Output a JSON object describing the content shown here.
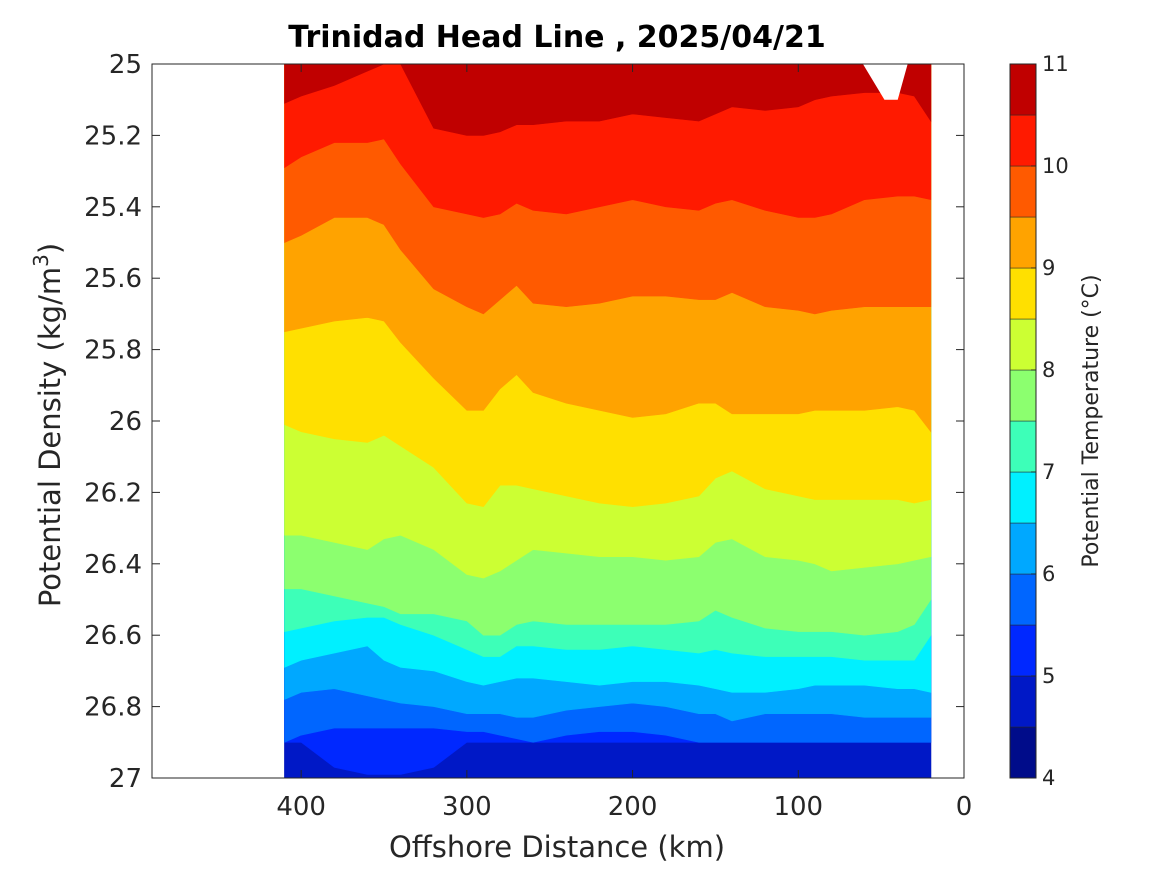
{
  "chart_data": {
    "type": "heatmap",
    "title": "Trinidad Head Line , 2025/04/21",
    "xlabel": "Offshore Distance (km)",
    "ylabel_prefix": "Potential Density (kg/m",
    "ylabel_sup": "3",
    "ylabel_suffix": ")",
    "colorbar_label": "Potential Temperature (°C)",
    "xlim": [
      490,
      0
    ],
    "ylim": [
      27,
      25
    ],
    "x_ticks": [
      "400",
      "300",
      "200",
      "100",
      "0"
    ],
    "x_tick_values": [
      400,
      300,
      200,
      100,
      0
    ],
    "y_ticks": [
      "25",
      "25.2",
      "25.4",
      "25.6",
      "25.8",
      "26",
      "26.2",
      "26.4",
      "26.6",
      "26.8",
      "27"
    ],
    "y_tick_values": [
      25,
      25.2,
      25.4,
      25.6,
      25.8,
      26,
      26.2,
      26.4,
      26.6,
      26.8,
      27
    ],
    "colorbar_ticks": [
      "4",
      "5",
      "6",
      "7",
      "8",
      "9",
      "10",
      "11"
    ],
    "colorbar_tick_values": [
      4,
      5,
      6,
      7,
      8,
      9,
      10,
      11
    ],
    "levels": [
      4,
      4.5,
      5,
      5.5,
      6,
      6.5,
      7,
      7.5,
      8,
      8.5,
      9,
      9.5,
      10,
      10.5,
      11
    ],
    "level_colors": [
      "#000c8a",
      "#0018c6",
      "#0028ff",
      "#0066ff",
      "#00a8ff",
      "#00f0ff",
      "#3dffb8",
      "#8cff6f",
      "#ccff33",
      "#ffe000",
      "#ffa300",
      "#ff5a00",
      "#ff1a00",
      "#c00000"
    ],
    "colormap": "jet",
    "data_extent": {
      "x_min": 20,
      "x_max": 410,
      "sigma_min": 25,
      "sigma_max": 26.9
    },
    "isotherms": {
      "x": [
        410,
        400,
        380,
        360,
        350,
        340,
        320,
        300,
        290,
        280,
        270,
        260,
        240,
        220,
        200,
        180,
        160,
        150,
        140,
        120,
        100,
        90,
        80,
        60,
        40,
        30,
        20
      ],
      "sigma_at_level": {
        "5": [
          26.9,
          26.9,
          26.97,
          26.99,
          26.99,
          26.99,
          26.97,
          26.9,
          26.9,
          26.9,
          26.9,
          26.9,
          26.9,
          26.9,
          26.9,
          26.9,
          26.9,
          26.9,
          26.9,
          26.9,
          26.9,
          26.9,
          26.9,
          26.9,
          26.9,
          26.9,
          26.9
        ],
        "5.5": [
          26.9,
          26.88,
          26.86,
          26.86,
          26.86,
          26.86,
          26.86,
          26.87,
          26.87,
          26.88,
          26.89,
          26.9,
          26.88,
          26.87,
          26.87,
          26.88,
          26.9,
          26.9,
          26.9,
          26.9,
          26.9,
          26.9,
          26.9,
          26.9,
          26.9,
          26.9,
          26.9
        ],
        "6": [
          26.78,
          26.76,
          26.75,
          26.77,
          26.78,
          26.79,
          26.8,
          26.82,
          26.82,
          26.82,
          26.83,
          26.83,
          26.81,
          26.8,
          26.79,
          26.8,
          26.82,
          26.82,
          26.84,
          26.82,
          26.82,
          26.82,
          26.82,
          26.83,
          26.83,
          26.83,
          26.83
        ],
        "6.5": [
          26.69,
          26.67,
          26.65,
          26.63,
          26.67,
          26.69,
          26.7,
          26.73,
          26.74,
          26.73,
          26.72,
          26.72,
          26.73,
          26.74,
          26.73,
          26.73,
          26.74,
          26.75,
          26.76,
          26.76,
          26.75,
          26.74,
          26.74,
          26.74,
          26.75,
          26.75,
          26.76
        ],
        "7": [
          26.59,
          26.58,
          26.56,
          26.55,
          26.55,
          26.57,
          26.6,
          26.64,
          26.66,
          26.66,
          26.63,
          26.63,
          26.64,
          26.64,
          26.63,
          26.64,
          26.65,
          26.64,
          26.65,
          26.66,
          26.66,
          26.66,
          26.66,
          26.67,
          26.67,
          26.67,
          26.6
        ],
        "7.5": [
          26.47,
          26.47,
          26.49,
          26.51,
          26.52,
          26.54,
          26.54,
          26.56,
          26.6,
          26.6,
          26.57,
          26.56,
          26.57,
          26.57,
          26.57,
          26.57,
          26.56,
          26.53,
          26.55,
          26.58,
          26.59,
          26.59,
          26.59,
          26.6,
          26.59,
          26.57,
          26.5
        ],
        "8": [
          26.32,
          26.32,
          26.34,
          26.36,
          26.33,
          26.32,
          26.36,
          26.43,
          26.44,
          26.42,
          26.39,
          26.36,
          26.37,
          26.38,
          26.38,
          26.39,
          26.38,
          26.34,
          26.33,
          26.38,
          26.39,
          26.4,
          26.42,
          26.41,
          26.4,
          26.39,
          26.38
        ],
        "8.5": [
          26.01,
          26.03,
          26.05,
          26.06,
          26.04,
          26.07,
          26.13,
          26.23,
          26.24,
          26.18,
          26.18,
          26.19,
          26.21,
          26.23,
          26.24,
          26.23,
          26.21,
          26.16,
          26.14,
          26.19,
          26.21,
          26.22,
          26.22,
          26.22,
          26.22,
          26.23,
          26.22
        ],
        "9": [
          25.75,
          25.74,
          25.72,
          25.71,
          25.72,
          25.78,
          25.88,
          25.97,
          25.97,
          25.91,
          25.87,
          25.92,
          25.95,
          25.97,
          25.99,
          25.98,
          25.95,
          25.95,
          25.98,
          25.98,
          25.98,
          25.97,
          25.97,
          25.97,
          25.96,
          25.97,
          26.03
        ],
        "9.5": [
          25.5,
          25.48,
          25.43,
          25.43,
          25.45,
          25.52,
          25.63,
          25.68,
          25.7,
          25.66,
          25.62,
          25.67,
          25.68,
          25.67,
          25.65,
          25.65,
          25.66,
          25.66,
          25.64,
          25.68,
          25.69,
          25.7,
          25.69,
          25.68,
          25.68,
          25.68,
          25.68
        ],
        "10": [
          25.29,
          25.26,
          25.22,
          25.22,
          25.21,
          25.28,
          25.4,
          25.42,
          25.43,
          25.42,
          25.39,
          25.41,
          25.42,
          25.4,
          25.38,
          25.4,
          25.41,
          25.39,
          25.38,
          25.41,
          25.43,
          25.43,
          25.42,
          25.38,
          25.37,
          25.37,
          25.38
        ],
        "10.5": [
          25.11,
          25.09,
          25.06,
          25.02,
          25.0,
          25.0,
          25.18,
          25.2,
          25.2,
          25.19,
          25.17,
          25.17,
          25.16,
          25.16,
          25.14,
          25.15,
          25.16,
          25.14,
          25.12,
          25.13,
          25.12,
          25.1,
          25.09,
          25.08,
          25.08,
          25.09,
          25.16
        ]
      }
    },
    "white_notch": {
      "x": [
        61,
        48,
        40,
        34,
        20
      ],
      "sigma": [
        25.0,
        25.1,
        25.1,
        25.0,
        25.0
      ]
    }
  }
}
